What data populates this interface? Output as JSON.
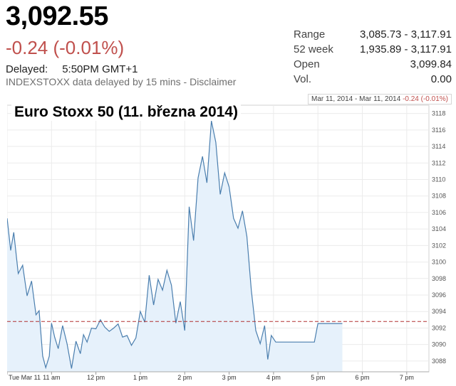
{
  "quote": {
    "price": "3,092.55",
    "change": "-0.24 (-0.01%)",
    "delayed_label": "Delayed:",
    "delayed_time": "5:50PM GMT+1",
    "disclaimer": "INDEXSTOXX data delayed by 15 mins - Disclaimer"
  },
  "stats": [
    {
      "label": "Range",
      "value": "3,085.73 - 3,117.91"
    },
    {
      "label": "52 week",
      "value": "1,935.89 - 3,117.91"
    },
    {
      "label": "Open",
      "value": "3,099.84"
    },
    {
      "label": "Vol.",
      "value": "0.00"
    }
  ],
  "range_bar": {
    "from": "Mar 11, 2014",
    "sep": "-",
    "to": "Mar 11, 2014",
    "change": "-0.24 (-0.01%)"
  },
  "colors": {
    "line": "#4a7eae",
    "fill": "#e6f1fb",
    "ref": "#b03030",
    "negative": "#c0504d"
  },
  "chart_data": {
    "type": "area",
    "title": "Euro Stoxx 50 (11. března 2014)",
    "xlabel": "",
    "ylabel": "",
    "x_ticks": [
      "Tue Mar 11",
      "11 am",
      "12 pm",
      "1 pm",
      "2 pm",
      "3 pm",
      "4 pm",
      "5 pm",
      "6 pm",
      "7 pm"
    ],
    "y_ticks": [
      3088,
      3090,
      3092,
      3094,
      3096,
      3098,
      3100,
      3102,
      3104,
      3106,
      3108,
      3110,
      3112,
      3114,
      3116,
      3118
    ],
    "ylim": [
      3086.7,
      3119
    ],
    "xlim": [
      10.0,
      19.5
    ],
    "previous_close": 3092.79,
    "series": [
      {
        "x": [
          10.0,
          10.08,
          10.15,
          10.25,
          10.35,
          10.45,
          10.55,
          10.65,
          10.72,
          10.8,
          10.87,
          10.95,
          11.0,
          11.07,
          11.15,
          11.25,
          11.35,
          11.45,
          11.55,
          11.65,
          11.72,
          11.8,
          11.9,
          12.0,
          12.1,
          12.2,
          12.3,
          12.4,
          12.5,
          12.6,
          12.7,
          12.8,
          12.9,
          13.0,
          13.1,
          13.2,
          13.3,
          13.4,
          13.5,
          13.6,
          13.7,
          13.8,
          13.9,
          14.0,
          14.1,
          14.2,
          14.3,
          14.4,
          14.5,
          14.6,
          14.7,
          14.8,
          14.9,
          15.0,
          15.1,
          15.2,
          15.3,
          15.4,
          15.5,
          15.6,
          15.7,
          15.8,
          15.87,
          15.95,
          16.05,
          16.15,
          16.25,
          16.35,
          16.45,
          16.55,
          16.65,
          16.75,
          16.85,
          16.92,
          17.0,
          17.05,
          17.1,
          17.15,
          17.25,
          17.35,
          17.45,
          17.55
        ],
        "y": [
          3105.3,
          3101.4,
          3103.6,
          3098.6,
          3099.6,
          3095.9,
          3097.7,
          3093.6,
          3094.1,
          3088.6,
          3087.2,
          3088.6,
          3092.6,
          3090.9,
          3089.5,
          3092.3,
          3090.1,
          3087.1,
          3090.4,
          3088.9,
          3091.2,
          3090.3,
          3092.0,
          3091.9,
          3093.0,
          3092.1,
          3091.6,
          3092.0,
          3092.5,
          3090.9,
          3091.1,
          3089.9,
          3090.8,
          3094.0,
          3092.7,
          3098.4,
          3094.8,
          3097.9,
          3096.6,
          3099.0,
          3097.2,
          3092.6,
          3095.2,
          3091.7,
          3106.7,
          3102.6,
          3110.2,
          3112.8,
          3109.6,
          3117.1,
          3114.5,
          3108.2,
          3110.8,
          3109.1,
          3105.3,
          3104.1,
          3106.2,
          3103.1,
          3096.6,
          3091.7,
          3090.1,
          3092.3,
          3088.2,
          3091.1,
          3090.3,
          3090.3,
          3090.3,
          3090.3,
          3090.3,
          3090.3,
          3090.3,
          3090.3,
          3090.3,
          3090.3,
          3092.55,
          3092.55,
          3092.55,
          3092.55,
          3092.55,
          3092.55,
          3092.55,
          3092.55
        ]
      }
    ]
  }
}
